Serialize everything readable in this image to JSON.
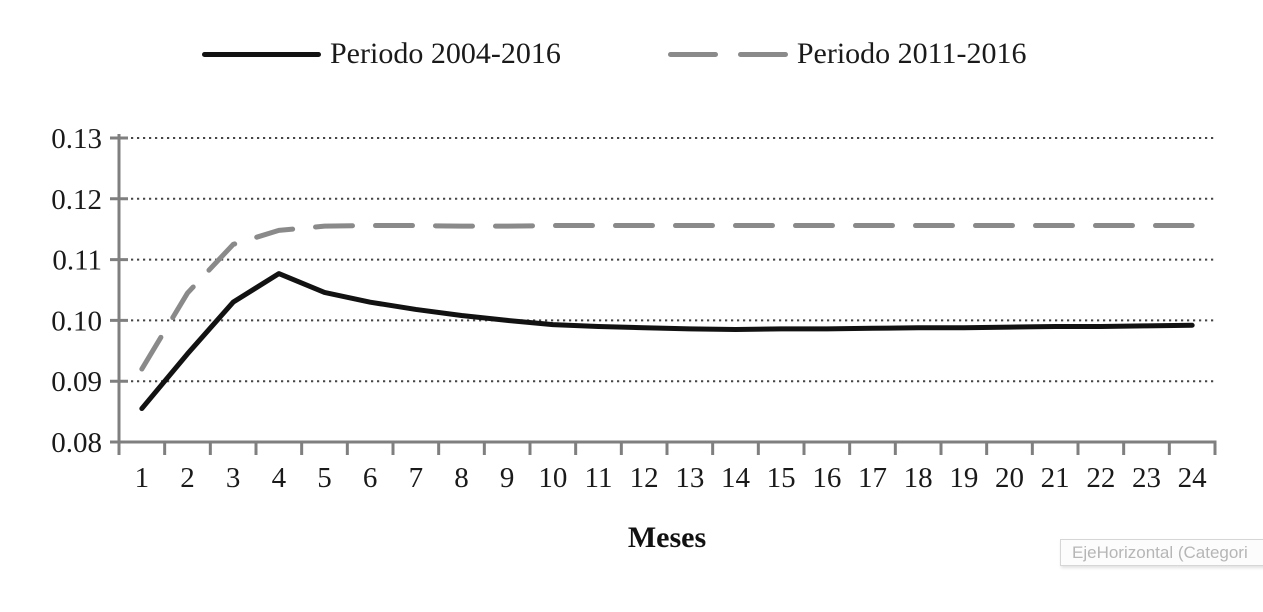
{
  "tooltip": {
    "text": "EjeHorizontal (Categori"
  },
  "colors": {
    "series1": "#121212",
    "series2": "#8a8a8a",
    "axis": "#7f7f7f",
    "grid": "#454545",
    "text": "#1a1a1a",
    "tooltip_text": "#b6b6b6"
  },
  "chart_data": {
    "type": "line",
    "title": "",
    "xlabel": "Meses",
    "ylabel": "",
    "x": [
      1,
      2,
      3,
      4,
      5,
      6,
      7,
      8,
      9,
      10,
      11,
      12,
      13,
      14,
      15,
      16,
      17,
      18,
      19,
      20,
      21,
      22,
      23,
      24
    ],
    "ylim": [
      0.08,
      0.13
    ],
    "yticks": [
      0.08,
      0.09,
      0.1,
      0.11,
      0.12,
      0.13
    ],
    "ytick_labels": [
      "0.08",
      "0.09",
      "0.10",
      "0.11",
      "0.12",
      "0.13"
    ],
    "grid": "horizontal-dotted",
    "legend_position": "top",
    "series": [
      {
        "name": "Periodo 2004-2016",
        "style": "solid",
        "color": "#121212",
        "values": [
          0.0855,
          0.0945,
          0.103,
          0.1077,
          0.1046,
          0.103,
          0.1018,
          0.1008,
          0.1,
          0.0993,
          0.099,
          0.0988,
          0.0986,
          0.0985,
          0.0986,
          0.0986,
          0.0987,
          0.0988,
          0.0988,
          0.0989,
          0.099,
          0.099,
          0.0991,
          0.0992
        ]
      },
      {
        "name": "Periodo 2011-2016",
        "style": "dashed",
        "color": "#8a8a8a",
        "values": [
          0.092,
          0.1045,
          0.1125,
          0.1148,
          0.1155,
          0.1156,
          0.1156,
          0.1155,
          0.1155,
          0.1156,
          0.1156,
          0.1156,
          0.1156,
          0.1156,
          0.1156,
          0.1156,
          0.1156,
          0.1156,
          0.1156,
          0.1156,
          0.1156,
          0.1156,
          0.1156,
          0.1156
        ]
      }
    ]
  }
}
